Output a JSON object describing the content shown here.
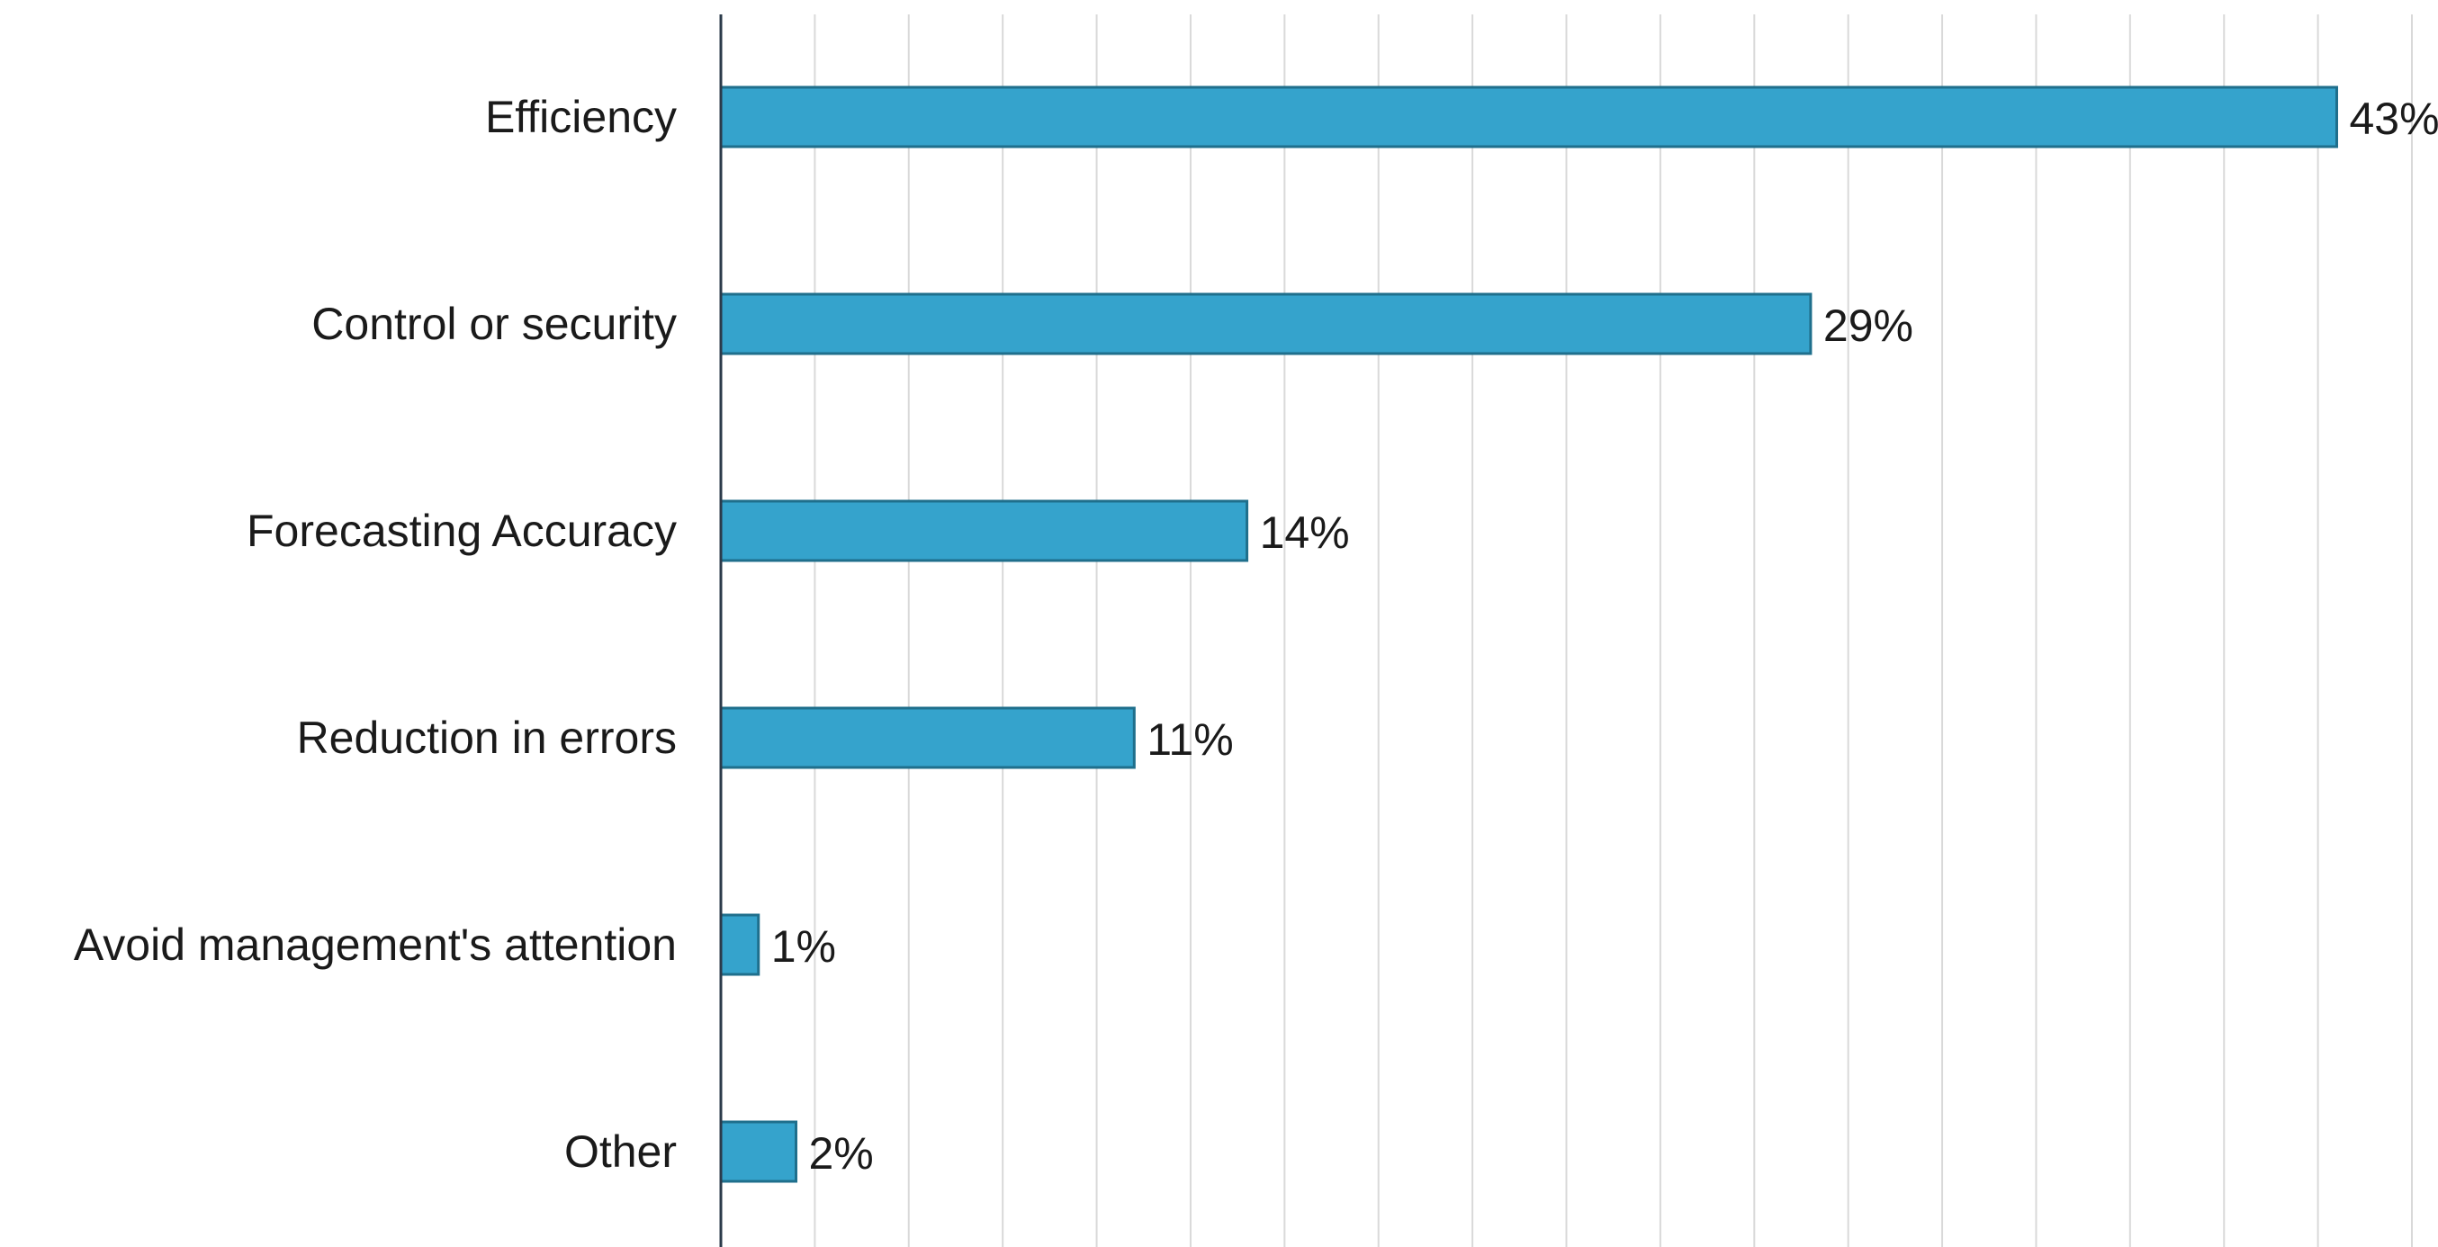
{
  "chart_data": {
    "type": "bar",
    "orientation": "horizontal",
    "categories": [
      "Efficiency",
      "Control or security",
      "Forecasting Accuracy",
      "Reduction in errors",
      "Avoid management's attention",
      "Other"
    ],
    "values": [
      43,
      29,
      14,
      11,
      1,
      2
    ],
    "value_labels": [
      "43%",
      "29%",
      "14%",
      "11%",
      "1%",
      "2%"
    ],
    "xlim": [
      0,
      45
    ],
    "grid": true,
    "bar_color": "#35a3cc",
    "bar_edge_color": "#1f6f8c",
    "axis_color": "#2b3a4a",
    "grid_color": "#d9d9d9"
  }
}
